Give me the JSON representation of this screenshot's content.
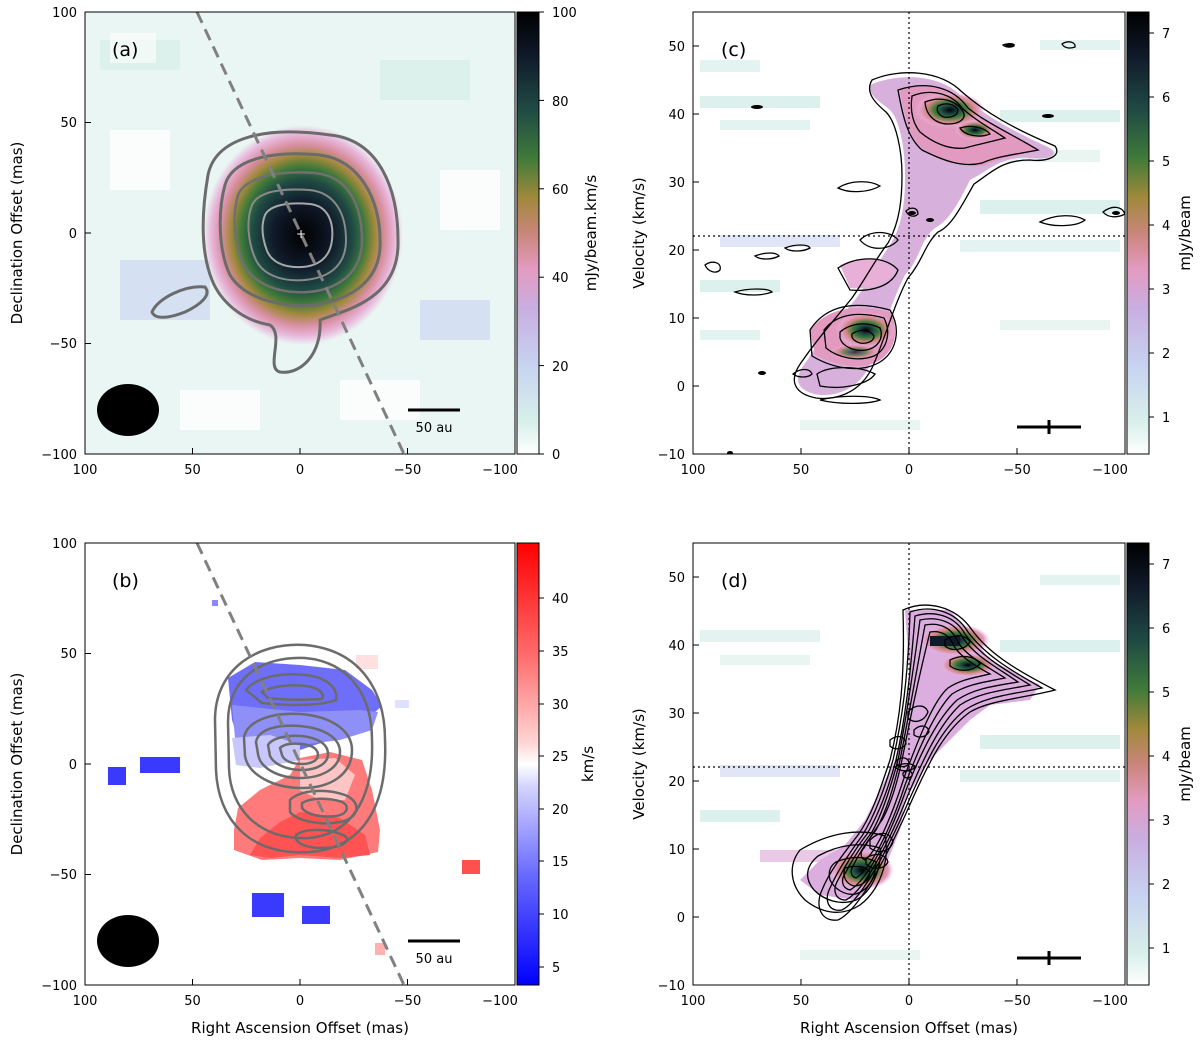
{
  "colors": {
    "cmap_amp": [
      "#ffffff",
      "#d9f0ea",
      "#c7d3f0",
      "#c8aee0",
      "#e39ac0",
      "#c9867a",
      "#a0893b",
      "#3f7a3a",
      "#1f4a44",
      "#101a2a",
      "#000000"
    ],
    "cmap_vel": [
      "#0000ff",
      "#5a5aff",
      "#b4b4ff",
      "#ffffff",
      "#ffb4b4",
      "#ff5a5a",
      "#ff0000"
    ],
    "contour_gray": "#6b6b6b",
    "contour_light": "#a8a8a8",
    "dash_gray": "#808080"
  },
  "chart_data": [
    {
      "id": "a",
      "type": "heatmap",
      "panel_label": "(a)",
      "xlabel": "",
      "ylabel": "Declination Offset (mas)",
      "x_ticks": [
        "100",
        "50",
        "0",
        "−50",
        "−100"
      ],
      "y_ticks": [
        "100",
        "50",
        "0",
        "−50",
        "−100"
      ],
      "xlim": [
        100,
        -100
      ],
      "ylim": [
        -100,
        100
      ],
      "colorbar": {
        "label": "mJy/beam.km/s",
        "range": [
          0,
          100
        ],
        "ticks": [
          "0",
          "20",
          "40",
          "60",
          "80",
          "100"
        ]
      },
      "scalebar": "50 au",
      "peak_mark": "+",
      "dashed_axis": {
        "pa_deg": 25,
        "through": [
          0,
          0
        ]
      },
      "source": {
        "x": 0,
        "y": 0,
        "half_width": 40,
        "half_height": 45
      }
    },
    {
      "id": "b",
      "type": "heatmap",
      "panel_label": "(b)",
      "xlabel": "Right Ascension Offset (mas)",
      "ylabel": "Declination Offset (mas)",
      "x_ticks": [
        "100",
        "50",
        "0",
        "−50",
        "−100"
      ],
      "y_ticks": [
        "100",
        "50",
        "0",
        "−50",
        "−100"
      ],
      "xlim": [
        100,
        -100
      ],
      "ylim": [
        -100,
        100
      ],
      "colorbar": {
        "label": "km/s",
        "range": [
          3,
          45
        ],
        "ticks": [
          "5",
          "10",
          "15",
          "20",
          "25",
          "30",
          "35",
          "40"
        ]
      },
      "scalebar": "50 au",
      "dashed_axis": {
        "pa_deg": 25,
        "through": [
          0,
          0
        ]
      }
    },
    {
      "id": "c",
      "type": "heatmap",
      "panel_label": "(c)",
      "xlabel": "",
      "ylabel": "Velocity (km/s)",
      "x_ticks": [
        "100",
        "50",
        "0",
        "−50",
        "−100"
      ],
      "y_ticks": [
        "50",
        "40",
        "30",
        "20",
        "10",
        "0",
        "−10"
      ],
      "xlim": [
        100,
        -100
      ],
      "ylim": [
        -10,
        55
      ],
      "colorbar": {
        "label": "mJy/beam",
        "range": [
          0.4,
          7.3
        ],
        "ticks": [
          "1",
          "2",
          "3",
          "4",
          "5",
          "6",
          "7"
        ]
      },
      "systemic_velocity": 22,
      "zero_offset": 0,
      "blobs": [
        {
          "x": 22,
          "y": 8,
          "peak": 6.5
        },
        {
          "x": 20,
          "y": 40,
          "peak": 7.2
        },
        {
          "x": -30,
          "y": 35,
          "peak": 4.5
        },
        {
          "x": 15,
          "y": 15,
          "peak": 4.0
        },
        {
          "x": 5,
          "y": 20,
          "peak": 3.5
        },
        {
          "x": -5,
          "y": 28,
          "peak": 3.0
        },
        {
          "x": 40,
          "y": 4,
          "peak": 3.5
        }
      ]
    },
    {
      "id": "d",
      "type": "heatmap",
      "panel_label": "(d)",
      "xlabel": "Right Ascension Offset (mas)",
      "ylabel": "Velocity (km/s)",
      "x_ticks": [
        "100",
        "50",
        "0",
        "−50",
        "−100"
      ],
      "y_ticks": [
        "50",
        "40",
        "30",
        "20",
        "10",
        "0",
        "−10"
      ],
      "xlim": [
        100,
        -100
      ],
      "ylim": [
        -10,
        55
      ],
      "colorbar": {
        "label": "mJy/beam",
        "range": [
          0.4,
          7.3
        ],
        "ticks": [
          "1",
          "2",
          "3",
          "4",
          "5",
          "6",
          "7"
        ]
      },
      "systemic_velocity": 22,
      "zero_offset": 0
    }
  ]
}
